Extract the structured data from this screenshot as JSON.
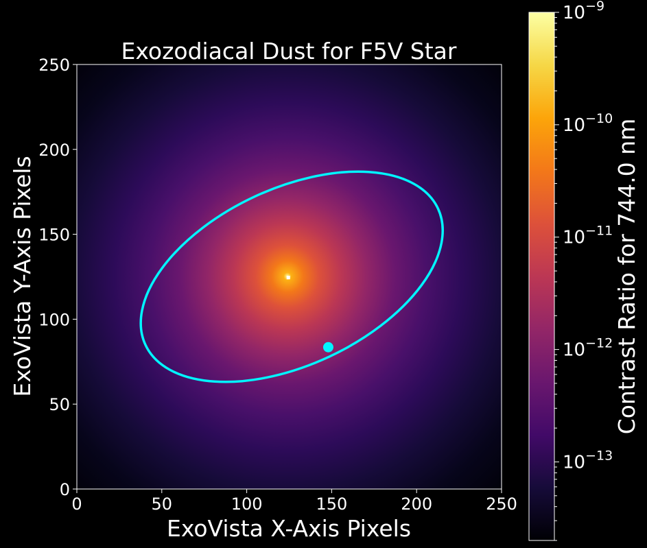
{
  "chart_data": {
    "type": "heatmap",
    "title": "Exozodiacal Dust for F5V Star",
    "xlabel": "ExoVista X-Axis Pixels",
    "ylabel": "ExoVista Y-Axis Pixels",
    "xlim": [
      0,
      250
    ],
    "ylim": [
      0,
      250
    ],
    "xticks": [
      "0",
      "50",
      "100",
      "150",
      "200",
      "250"
    ],
    "yticks": [
      "0",
      "50",
      "100",
      "150",
      "200",
      "250"
    ],
    "x_tick_values": [
      0,
      50,
      100,
      150,
      200,
      250
    ],
    "y_tick_values": [
      0,
      50,
      100,
      150,
      200,
      250
    ],
    "colormap": "inferno",
    "colorbar": {
      "label": "Contrast Ratio for 744.0 nm",
      "scale": "log",
      "range": [
        2e-14,
        1e-09
      ],
      "ticks": [
        {
          "base": "10",
          "exponent": "−9",
          "value": 1e-09
        },
        {
          "base": "10",
          "exponent": "−10",
          "value": 1e-10
        },
        {
          "base": "10",
          "exponent": "−11",
          "value": 1e-11
        },
        {
          "base": "10",
          "exponent": "−12",
          "value": 1e-12
        },
        {
          "base": "10",
          "exponent": "−13",
          "value": 1e-13
        }
      ]
    },
    "star": {
      "x": 124.5,
      "y": 124.5
    },
    "orbit": {
      "center_x": 126.5,
      "center_y": 125,
      "semi_major": 95,
      "semi_minor": 52,
      "rotation_deg": 25,
      "color": "#00f5ff"
    },
    "planet": {
      "x": 148,
      "y": 83.5,
      "color": "#00f5ff"
    }
  }
}
